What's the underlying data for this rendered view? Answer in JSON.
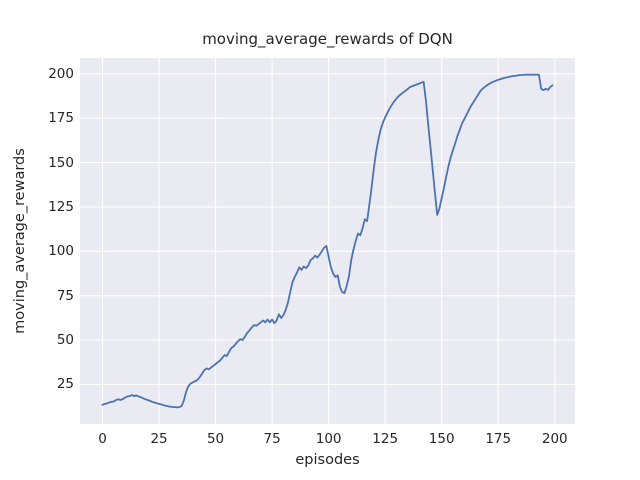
{
  "chart": {
    "title": "moving_average_rewards of DQN",
    "xlabel": "episodes",
    "ylabel": "moving_average_rewards"
  },
  "chart_data": {
    "type": "line",
    "title": "moving_average_rewards of DQN",
    "xlabel": "episodes",
    "ylabel": "moving_average_rewards",
    "xticks": [
      0,
      25,
      50,
      75,
      100,
      125,
      150,
      175,
      200
    ],
    "yticks": [
      25,
      50,
      75,
      100,
      125,
      150,
      175,
      200
    ],
    "xlim": [
      -9.95,
      208.95
    ],
    "ylim": [
      2.7,
      208.9
    ],
    "grid": true,
    "legend": false,
    "colors": {
      "line": "#4c72b0",
      "plot_background": "#eaeaf2",
      "grid": "#ffffff",
      "text": "#262626",
      "figure_background": "#ffffff"
    },
    "series": [
      {
        "name": "moving_average_rewards",
        "x_start": 0,
        "x_step": 1,
        "values": [
          13.5,
          14.0,
          14.3,
          14.8,
          15.2,
          15.4,
          16.2,
          16.6,
          16.2,
          16.8,
          17.6,
          18.2,
          18.4,
          19.0,
          18.4,
          18.8,
          18.2,
          17.8,
          17.2,
          16.6,
          16.2,
          15.7,
          15.2,
          14.8,
          14.4,
          14.0,
          13.7,
          13.3,
          13.0,
          12.7,
          12.5,
          12.3,
          12.2,
          12.1,
          12.2,
          12.8,
          16.0,
          21.0,
          24.0,
          25.5,
          26.2,
          26.8,
          27.6,
          29.0,
          31.0,
          33.0,
          34.0,
          33.5,
          34.5,
          35.5,
          36.5,
          37.5,
          38.5,
          40.0,
          41.5,
          41.0,
          43.5,
          45.5,
          46.5,
          48.0,
          49.5,
          50.5,
          50.0,
          52.0,
          54.0,
          55.5,
          57.0,
          58.5,
          58.0,
          59.0,
          60.0,
          61.0,
          60.0,
          61.5,
          60.0,
          61.5,
          59.5,
          61.0,
          64.5,
          62.5,
          64.0,
          67.0,
          71.0,
          77.0,
          82.5,
          85.5,
          88.0,
          91.0,
          89.5,
          91.5,
          90.5,
          92.0,
          95.0,
          96.0,
          97.5,
          96.5,
          98.0,
          100.0,
          102.0,
          103.0,
          97.0,
          91.0,
          87.5,
          85.5,
          86.5,
          80.0,
          77.0,
          76.5,
          80.5,
          86.0,
          95.0,
          101.0,
          106.0,
          110.0,
          109.0,
          113.0,
          118.0,
          117.0,
          126.0,
          136.0,
          147.0,
          156.0,
          163.0,
          168.5,
          172.5,
          175.5,
          178.0,
          180.5,
          182.5,
          184.5,
          186.0,
          187.5,
          188.5,
          189.5,
          190.5,
          191.5,
          192.5,
          193.0,
          193.5,
          194.0,
          194.5,
          195.0,
          195.5,
          185.0,
          172.0,
          159.0,
          146.0,
          133.0,
          120.5,
          124.0,
          130.0,
          136.0,
          142.0,
          148.0,
          153.0,
          157.0,
          161.0,
          165.0,
          168.5,
          172.0,
          174.5,
          177.0,
          179.5,
          182.0,
          184.0,
          186.0,
          188.0,
          190.0,
          191.5,
          192.5,
          193.5,
          194.3,
          195.0,
          195.6,
          196.1,
          196.6,
          197.0,
          197.4,
          197.8,
          198.1,
          198.3,
          198.6,
          198.8,
          199.0,
          199.2,
          199.3,
          199.4,
          199.5,
          199.5,
          199.5,
          199.5,
          199.5,
          199.5,
          199.5,
          191.5,
          190.8,
          191.5,
          191.0,
          192.5,
          193.5
        ]
      }
    ]
  }
}
